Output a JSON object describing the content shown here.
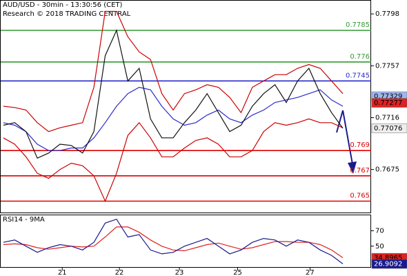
{
  "header": {
    "title": "AUD/USD - 30min - 13:30:56 (CET)",
    "subtitle": "Research © 2018 TRADING CENTRAL"
  },
  "chart_data": [
    {
      "type": "line",
      "x": [
        0,
        1,
        2,
        3,
        4,
        5,
        6,
        7,
        8,
        9,
        10,
        11,
        12,
        13,
        14,
        15,
        16,
        17,
        18,
        19,
        20,
        21,
        22,
        23,
        24,
        25,
        26,
        27,
        28,
        29,
        30
      ],
      "xlim": [
        -0.3,
        32.5
      ],
      "ylim": [
        0.7641,
        0.7809
      ],
      "yticks": [
        0.7798,
        0.7757,
        0.7716,
        0.7675
      ],
      "series": [
        {
          "color": "#cc0000",
          "values": [
            0.7725,
            0.7724,
            0.7722,
            0.7712,
            0.7705,
            0.7708,
            0.771,
            0.7712,
            0.774,
            0.78,
            0.78,
            0.778,
            0.7768,
            0.7762,
            0.7735,
            0.7722,
            0.7735,
            0.7738,
            0.7742,
            0.774,
            0.7732,
            0.772,
            0.774,
            0.7745,
            0.775,
            0.775,
            0.7755,
            0.7758,
            0.7755,
            0.7745,
            0.7735
          ]
        },
        {
          "color": "#cc0000",
          "values": [
            0.77,
            0.7695,
            0.7685,
            0.7672,
            0.7668,
            0.7675,
            0.768,
            0.7678,
            0.767,
            0.765,
            0.7672,
            0.7702,
            0.7712,
            0.77,
            0.7685,
            0.7685,
            0.7692,
            0.7698,
            0.77,
            0.7695,
            0.7685,
            0.7685,
            0.769,
            0.7705,
            0.7712,
            0.771,
            0.7712,
            0.7715,
            0.7712,
            0.7712,
            0.7708
          ]
        },
        {
          "color": "#2a2acc",
          "values": [
            0.7712,
            0.771,
            0.7705,
            0.7695,
            0.769,
            0.769,
            0.7692,
            0.7692,
            0.77,
            0.7712,
            0.7725,
            0.7735,
            0.774,
            0.7738,
            0.7725,
            0.7715,
            0.771,
            0.7712,
            0.7718,
            0.7722,
            0.7715,
            0.7712,
            0.7718,
            0.7722,
            0.7728,
            0.773,
            0.7732,
            0.7735,
            0.7738,
            0.773,
            0.7725
          ]
        },
        {
          "color": "#111111",
          "values": [
            0.771,
            0.7712,
            0.7705,
            0.7684,
            0.7688,
            0.7695,
            0.7694,
            0.7688,
            0.7705,
            0.7765,
            0.7785,
            0.7745,
            0.7755,
            0.7715,
            0.77,
            0.77,
            0.7712,
            0.7722,
            0.7735,
            0.772,
            0.7705,
            0.771,
            0.7725,
            0.7735,
            0.7742,
            0.7728,
            0.7745,
            0.7755,
            0.7735,
            0.772,
            0.77076
          ]
        }
      ],
      "levels": [
        {
          "value": 0.7785,
          "color": "#339933"
        },
        {
          "value": 0.776,
          "color": "#339933"
        },
        {
          "value": 0.7745,
          "color": "#2a2acc"
        },
        {
          "value": 0.769,
          "color": "#dd0000"
        },
        {
          "value": 0.767,
          "color": "#dd0000"
        },
        {
          "value": 0.765,
          "color": "#dd0000"
        }
      ],
      "tags": [
        {
          "value": 0.77329,
          "color": "#9fb6ee",
          "text_color": "#000000"
        },
        {
          "value": 0.77277,
          "color": "#dd2222",
          "text_color": "#000000"
        },
        {
          "value": 0.77076,
          "color": "#eeeeee",
          "text_color": "#000000"
        }
      ]
    },
    {
      "type": "line",
      "title": "RSI14 - 9MA",
      "x": [
        0,
        1,
        2,
        3,
        4,
        5,
        6,
        7,
        8,
        9,
        10,
        11,
        12,
        13,
        14,
        15,
        16,
        17,
        18,
        19,
        20,
        21,
        22,
        23,
        24,
        25,
        26,
        27,
        28,
        29,
        30
      ],
      "xlim": [
        -0.3,
        32.5
      ],
      "xticks": [
        {
          "value": 5.2,
          "label": "21"
        },
        {
          "value": 10.25,
          "label": "22"
        },
        {
          "value": 15.55,
          "label": "23"
        },
        {
          "value": 20.7,
          "label": "25"
        },
        {
          "value": 27.1,
          "label": "27"
        }
      ],
      "ylim": [
        22,
        91
      ],
      "yticks": [
        70,
        50
      ],
      "series": [
        {
          "color": "#dd2222",
          "values": [
            52,
            53,
            52,
            48,
            46,
            48,
            50,
            49,
            50,
            62,
            75,
            75,
            68,
            58,
            50,
            45,
            44,
            48,
            52,
            54,
            50,
            46,
            48,
            52,
            56,
            56,
            55,
            55,
            52,
            45,
            35
          ]
        },
        {
          "color": "#1a1a8c",
          "values": [
            55,
            58,
            50,
            42,
            48,
            52,
            50,
            45,
            55,
            80,
            85,
            62,
            65,
            45,
            40,
            42,
            50,
            55,
            60,
            50,
            40,
            45,
            55,
            60,
            58,
            50,
            58,
            55,
            45,
            38,
            27
          ]
        }
      ],
      "tags": [
        {
          "value": 34.8965,
          "color": "#dd2222",
          "text_color": "#000000"
        },
        {
          "value": 26.9092,
          "color": "#1a1a8c",
          "text_color": "#ffffff"
        }
      ]
    }
  ]
}
